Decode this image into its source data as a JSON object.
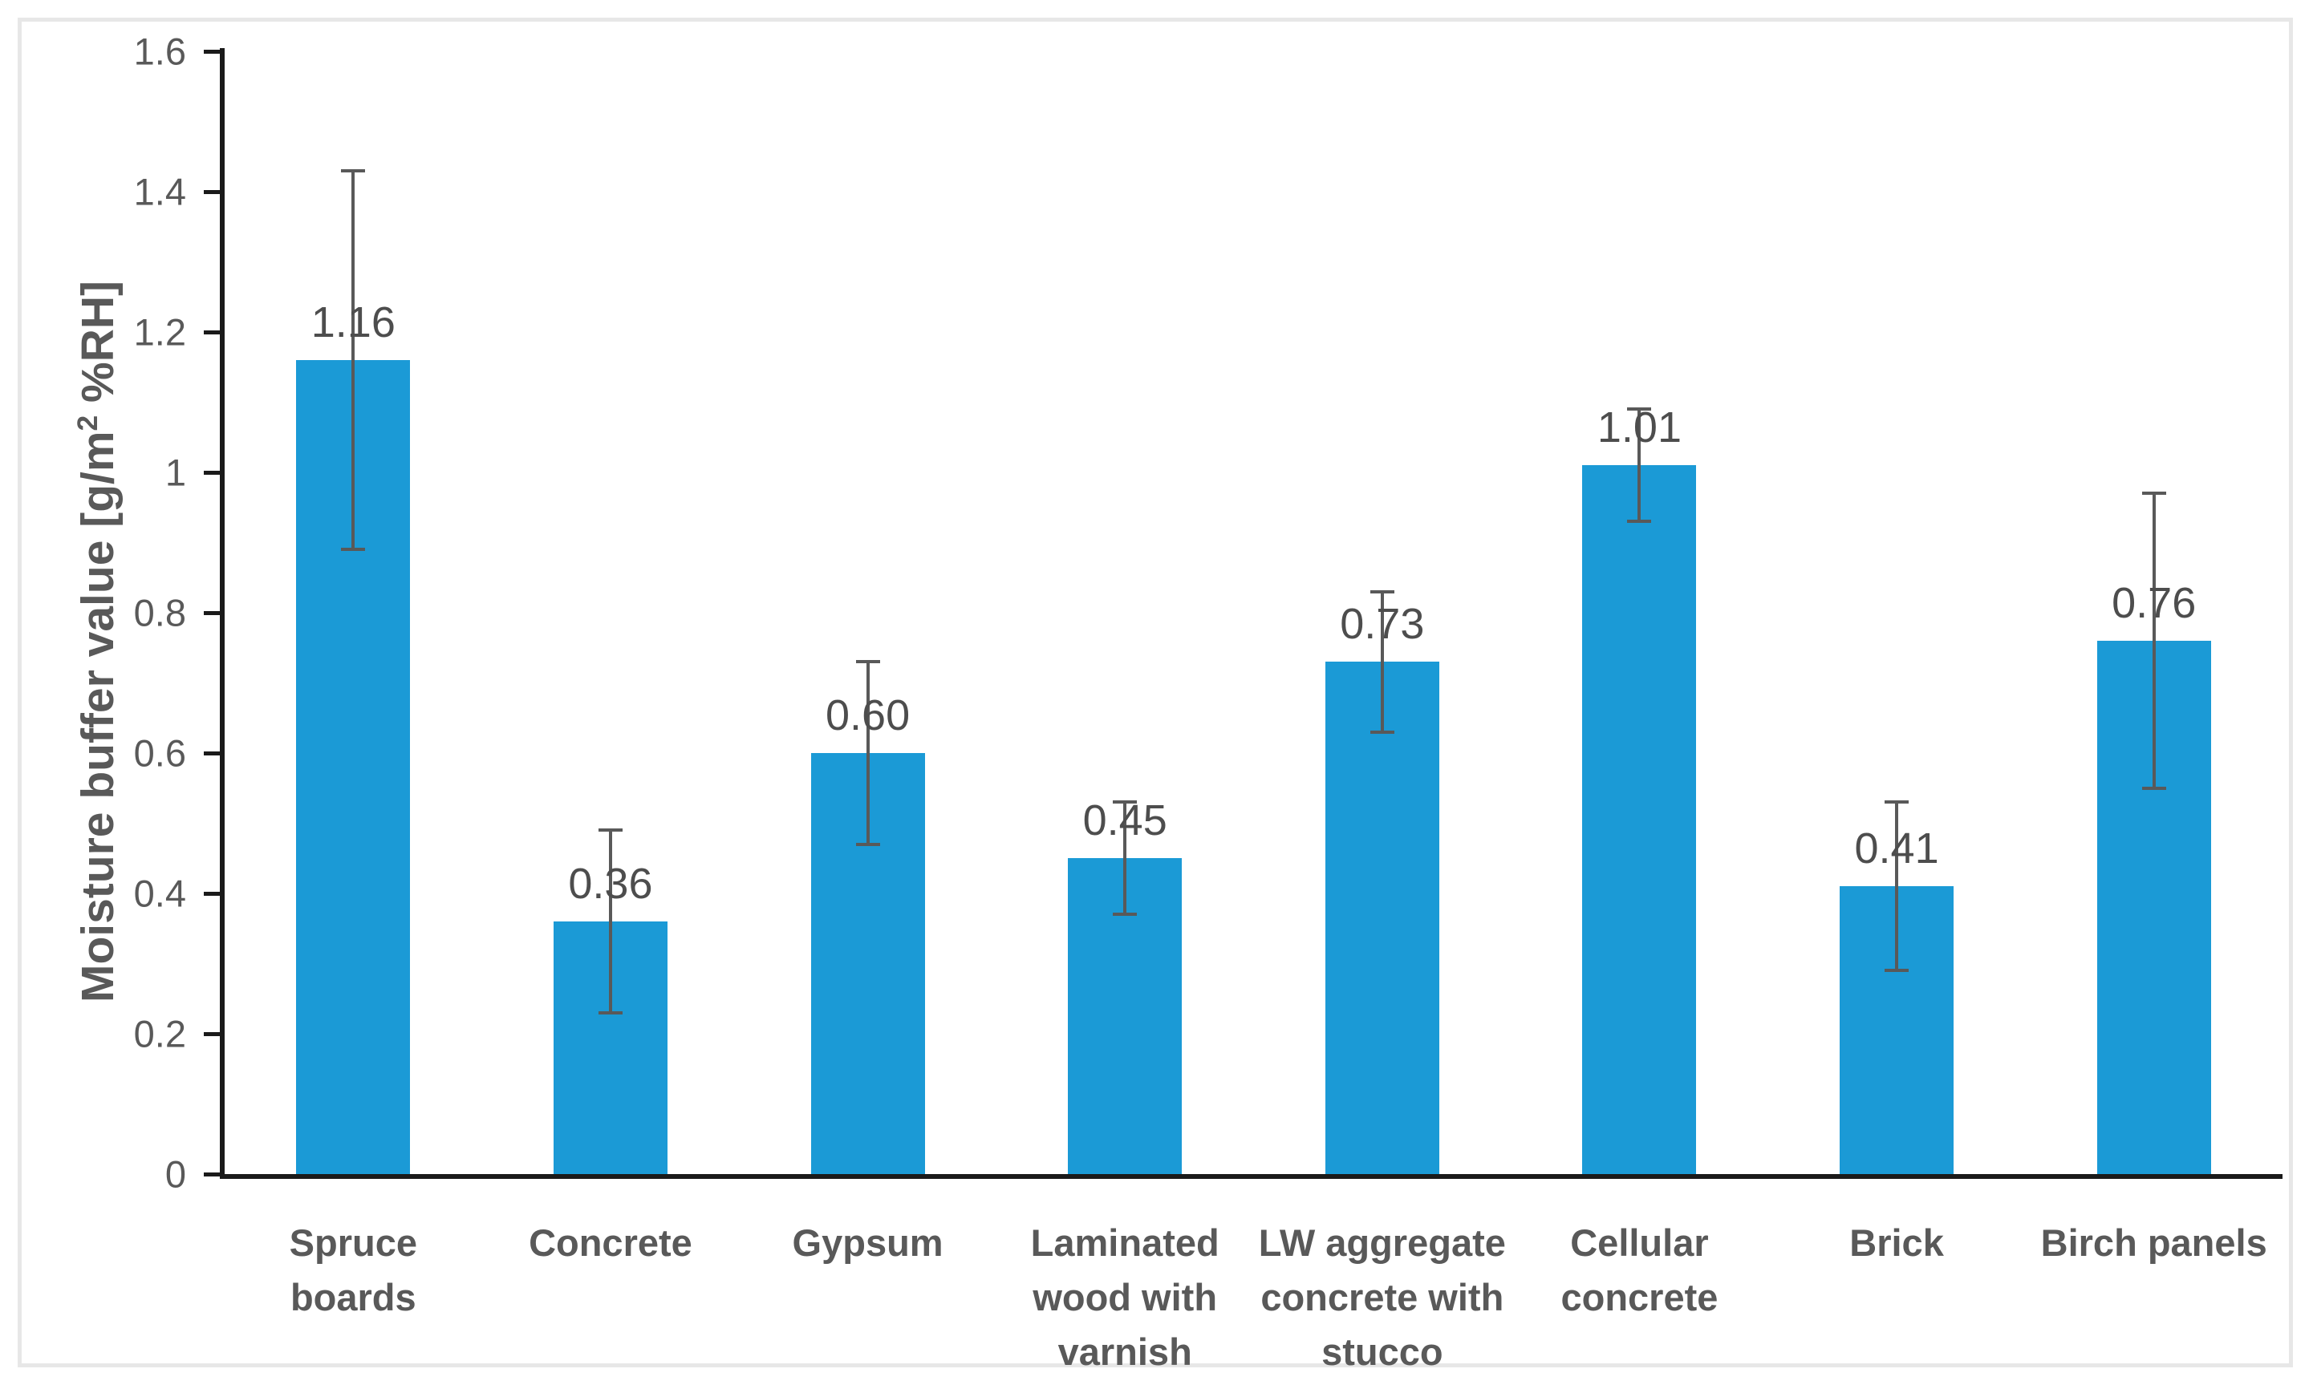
{
  "figure": {
    "ylabel_prefix": "Moisture buffer value [g/m",
    "ylabel_sup": "2",
    "ylabel_suffix": " %RH]"
  },
  "chart_data": {
    "type": "bar",
    "title": "",
    "xlabel": "",
    "ylabel": "Moisture buffer value [g/m² %RH]",
    "ylim": [
      0,
      1.6
    ],
    "ytick_interval": 0.2,
    "ytick_labels": [
      "0",
      "0.2",
      "0.4",
      "0.6",
      "0.8",
      "1",
      "1.2",
      "1.4",
      "1.6"
    ],
    "grid": false,
    "legend": false,
    "bar_color": "#1b9ad6",
    "error_bar_color": "#595959",
    "axis_color": "#1a1a1a",
    "categories": [
      "Spruce boards",
      "Concrete",
      "Gypsum",
      "Laminated wood with varnish",
      "LW aggregate concrete with stucco",
      "Cellular concrete",
      "Brick",
      "Birch panels"
    ],
    "categories_wrapped": [
      [
        "Spruce boards"
      ],
      [
        "Concrete"
      ],
      [
        "Gypsum"
      ],
      [
        "Laminated",
        "wood with",
        "varnish"
      ],
      [
        "LW aggregate",
        "concrete with",
        "stucco"
      ],
      [
        "Cellular",
        "concrete"
      ],
      [
        "Brick"
      ],
      [
        "Birch panels"
      ]
    ],
    "values": [
      1.16,
      0.36,
      0.6,
      0.45,
      0.73,
      1.01,
      0.41,
      0.76
    ],
    "value_labels": [
      "1.16",
      "0.36",
      "0.60",
      "0.45",
      "0.73",
      "1.01",
      "0.41",
      "0.76"
    ],
    "errors": [
      0.27,
      0.13,
      0.13,
      0.08,
      0.1,
      0.08,
      0.12,
      0.21
    ]
  }
}
